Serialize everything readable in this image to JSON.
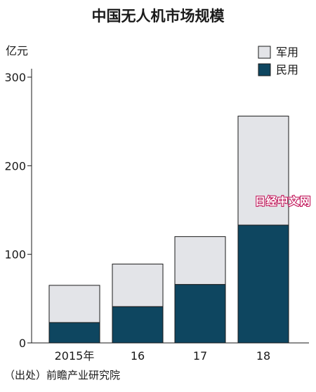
{
  "chart_data": {
    "type": "bar",
    "stacked": true,
    "title": "中国无人机市场规模",
    "unit_label": "亿元",
    "categories": [
      "2015年",
      "16",
      "17",
      "18"
    ],
    "series": [
      {
        "name": "民用",
        "values": [
          23,
          41,
          66,
          133
        ],
        "color": "#0e4660"
      },
      {
        "name": "军用",
        "values": [
          42,
          48,
          54,
          123
        ],
        "color": "#e3e4e8"
      }
    ],
    "ylim": [
      0,
      300
    ],
    "y_ticks": [
      "0",
      "100",
      "200",
      "300"
    ],
    "grid": false,
    "legend_placement": "top-right",
    "legend_order": [
      "军用",
      "民用"
    ],
    "source": "（出处）前瞻产业研究院"
  },
  "watermark": "日经中文网"
}
